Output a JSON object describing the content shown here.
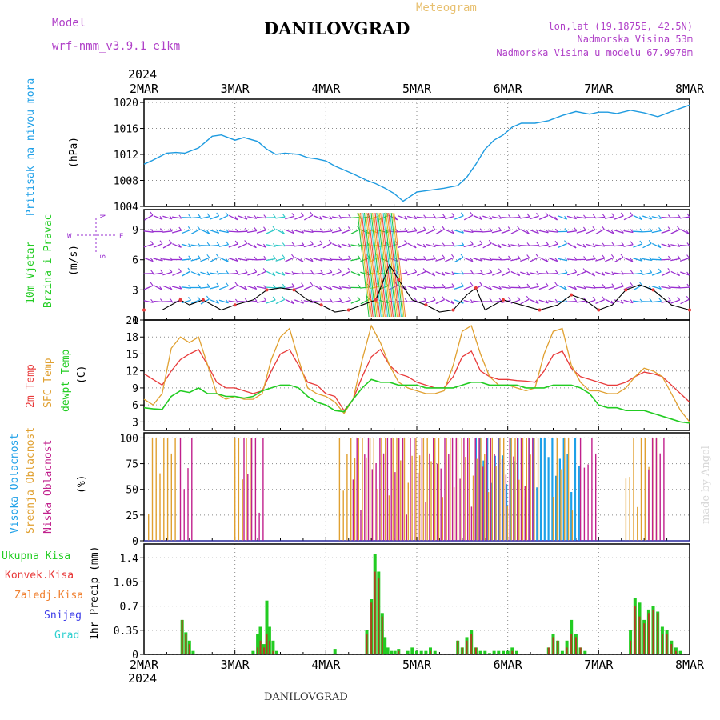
{
  "header": {
    "model_label": "Model",
    "model_name": "wrf-nmm_v3.9.1 e1km",
    "meteogram": "Meteogram",
    "station": "DANILOVGRAD",
    "lonlat": "lon,lat (19.1875E, 42.5N)",
    "elevation": "Nadmorska Visina 53m",
    "model_elevation": "Nadmorska Visina u modelu 67.9978m",
    "footer_station": "DANILOVGRAD",
    "watermark": "made by Angel"
  },
  "colors": {
    "pressure": "#1e9be0",
    "t2m": "#e83a3a",
    "sfc": "#e0a030",
    "dew": "#22cc22",
    "high_cloud": "#1ea0e8",
    "mid_cloud": "#e0a030",
    "low_cloud": "#c0208c",
    "total_precip": "#22cc22",
    "conv_precip": "#e83a3a",
    "frozen_precip": "#f08030",
    "snow": "#3a3ae8",
    "hail": "#30d0d0",
    "wind_label": "#22cc22",
    "wind_arrows": "#9a30d0",
    "axis_label": "#1ea0e8"
  },
  "time_axis": {
    "year": "2024",
    "ticks": [
      "2MAR",
      "3MAR",
      "4MAR",
      "5MAR",
      "6MAR",
      "7MAR",
      "8MAR"
    ]
  },
  "panels": {
    "pressure": {
      "label": "Pritisak na nivou mora",
      "unit": "(hPa)"
    },
    "wind": {
      "label1": "10m Vjetar",
      "label2": "Brzina i Pravac",
      "unit": "(m/s)",
      "compass_w": "W",
      "compass_e": "E",
      "compass_n": "N",
      "compass_s": "S"
    },
    "temp": {
      "label1": "2m Temp",
      "label2": "SFC Temp",
      "label3": "dewpt Temp",
      "unit": "(C)"
    },
    "cloud": {
      "label1": "Visoka Oblacnost",
      "label2": "Srednja Oblacnost",
      "label3": "Niska Oblacnost",
      "unit": "(%)"
    },
    "precip": {
      "labels": [
        "Ukupna Kisa",
        "Konvek.Kisa",
        "Zaledj.Kisa",
        "Snijeg",
        "Grad"
      ],
      "unit": "1hr Precip (mm)"
    }
  },
  "chart_data": [
    {
      "type": "line",
      "title": "Pritisak na nivou mora",
      "ylabel": "(hPa)",
      "ylim": [
        1004,
        1020.5
      ],
      "yticks": [
        1004,
        1008,
        1012,
        1016,
        1020
      ],
      "x_days": [
        0,
        0.08,
        0.15,
        0.25,
        0.35,
        0.45,
        0.6,
        0.75,
        0.85,
        1.0,
        1.1,
        1.25,
        1.35,
        1.45,
        1.55,
        1.7,
        1.8,
        1.9,
        2.0,
        2.1,
        2.3,
        2.45,
        2.55,
        2.65,
        2.75,
        2.85,
        3.0,
        3.15,
        3.3,
        3.45,
        3.55,
        3.65,
        3.75,
        3.85,
        3.95,
        4.05,
        4.15,
        4.3,
        4.45,
        4.6,
        4.75,
        4.9,
        5.0,
        5.1,
        5.2,
        5.35,
        5.5,
        5.65,
        5.8,
        6.0
      ],
      "series": [
        {
          "name": "",
          "values": [
            1010.5,
            1011,
            1011.5,
            1012.2,
            1012.3,
            1012.2,
            1013,
            1014.8,
            1015,
            1014.2,
            1014.6,
            1014,
            1012.8,
            1012,
            1012.2,
            1012,
            1011.5,
            1011.3,
            1011,
            1010.2,
            1009,
            1008,
            1007.5,
            1006.8,
            1006,
            1004.8,
            1006.2,
            1006.5,
            1006.8,
            1007.2,
            1008.5,
            1010.5,
            1012.8,
            1014.2,
            1015,
            1016.2,
            1016.8,
            1016.8,
            1017.2,
            1018,
            1018.6,
            1018.2,
            1018.5,
            1018.5,
            1018.3,
            1018.8,
            1018.4,
            1017.8,
            1018.6,
            1019.6
          ]
        }
      ]
    },
    {
      "type": "line",
      "title": "10m Vjetar",
      "ylabel": "(m/s)",
      "ylim": [
        0,
        11
      ],
      "yticks": [
        0,
        3,
        6,
        9
      ],
      "x_days": [
        0,
        0.2,
        0.4,
        0.5,
        0.65,
        0.85,
        1.0,
        1.2,
        1.35,
        1.5,
        1.65,
        1.8,
        1.95,
        2.1,
        2.25,
        2.4,
        2.55,
        2.7,
        2.8,
        2.95,
        3.1,
        3.25,
        3.4,
        3.55,
        3.65,
        3.75,
        3.95,
        4.15,
        4.35,
        4.55,
        4.7,
        4.85,
        5.0,
        5.15,
        5.3,
        5.45,
        5.6,
        5.8,
        6.0
      ],
      "series": [
        {
          "name": "",
          "values": [
            1.0,
            1.0,
            2.0,
            1.5,
            2.0,
            1.0,
            1.5,
            2.0,
            3.0,
            3.2,
            3.0,
            2.0,
            1.5,
            0.8,
            1.0,
            1.5,
            2.0,
            5.5,
            4.0,
            2.0,
            1.5,
            0.8,
            1.0,
            2.5,
            3.2,
            1.0,
            2.0,
            1.5,
            1.0,
            1.5,
            2.5,
            2.0,
            1.0,
            1.5,
            3.0,
            3.5,
            3.0,
            1.5,
            1.0
          ]
        }
      ]
    },
    {
      "type": "line",
      "title": "",
      "ylabel": "(C)",
      "ylim": [
        1.5,
        21
      ],
      "yticks": [
        3,
        6,
        9,
        12,
        15,
        18,
        21
      ],
      "x_days": [
        0,
        0.1,
        0.2,
        0.3,
        0.4,
        0.5,
        0.6,
        0.7,
        0.8,
        0.9,
        1.0,
        1.1,
        1.2,
        1.3,
        1.4,
        1.5,
        1.6,
        1.7,
        1.8,
        1.9,
        2.0,
        2.1,
        2.2,
        2.3,
        2.4,
        2.5,
        2.6,
        2.7,
        2.8,
        2.9,
        3.0,
        3.1,
        3.2,
        3.3,
        3.4,
        3.5,
        3.6,
        3.7,
        3.8,
        3.9,
        4.0,
        4.1,
        4.2,
        4.3,
        4.4,
        4.5,
        4.6,
        4.7,
        4.8,
        4.9,
        5.0,
        5.1,
        5.2,
        5.3,
        5.4,
        5.5,
        5.6,
        5.7,
        5.8,
        5.9,
        6.0
      ],
      "series": [
        {
          "name": "2m Temp",
          "values": [
            11.5,
            10.5,
            9.5,
            12,
            14,
            15,
            15.8,
            13,
            10,
            9,
            9,
            8.5,
            8,
            8.5,
            12,
            15,
            15.8,
            13,
            10,
            9.5,
            8,
            7.5,
            5,
            7,
            11,
            14.5,
            15.8,
            13,
            11.5,
            11,
            10,
            9.5,
            9,
            9,
            11,
            14.5,
            15.5,
            12,
            11,
            10.5,
            10.5,
            10.3,
            10.2,
            10,
            12,
            14.8,
            15.5,
            12.5,
            11,
            10.5,
            10,
            9.5,
            9.5,
            10,
            11,
            11.8,
            11.5,
            11,
            9.5,
            8,
            6.5
          ]
        },
        {
          "name": "SFC Temp",
          "values": [
            7,
            6,
            8,
            16,
            18,
            17,
            18,
            13,
            8,
            7,
            7.5,
            7,
            7,
            8,
            14,
            18,
            19.5,
            14,
            9,
            8,
            7.5,
            6.5,
            4.5,
            7,
            14,
            20,
            17,
            13,
            10,
            9,
            8.5,
            8,
            8,
            8.5,
            13,
            19,
            20,
            15,
            11,
            9.5,
            9.5,
            9,
            8.5,
            9,
            15,
            19,
            19.5,
            13,
            10,
            8.5,
            8.5,
            8,
            8,
            9,
            11,
            12.5,
            12,
            11,
            8,
            5,
            3
          ]
        },
        {
          "name": "dewpt Temp",
          "values": [
            5.5,
            5.3,
            5.2,
            7.5,
            8.5,
            8.2,
            9,
            8,
            8,
            7.5,
            7.5,
            7.2,
            7.5,
            8.5,
            9,
            9.5,
            9.5,
            9,
            7.5,
            6.5,
            6,
            5,
            4.8,
            7,
            9,
            10.5,
            10,
            10,
            9.5,
            9.5,
            9.5,
            9,
            9,
            9,
            9,
            9.5,
            10,
            10,
            9.5,
            9.5,
            9.5,
            9.5,
            9,
            9,
            9,
            9.5,
            9.5,
            9.5,
            9,
            8,
            6,
            5.5,
            5.5,
            5,
            5,
            5,
            4.5,
            4,
            3.5,
            3,
            2.8
          ]
        }
      ]
    },
    {
      "type": "bar",
      "title": "",
      "ylabel": "(%)",
      "ylim": [
        0,
        105
      ],
      "yticks": [
        0,
        25,
        50,
        75,
        100
      ],
      "series": [
        {
          "name": "Visoka Oblacnost",
          "ranges_days": [
            [
              3.65,
              4.8
            ]
          ],
          "value": 100
        },
        {
          "name": "Srednja Oblacnost",
          "ranges_days": [
            [
              0.05,
              0.35
            ],
            [
              1.0,
              1.2
            ],
            [
              2.15,
              4.35
            ],
            [
              4.5,
              4.75
            ],
            [
              5.3,
              5.65
            ]
          ],
          "value": 100
        },
        {
          "name": "Niska Oblacnost",
          "ranges_days": [
            [
              0.4,
              0.55
            ],
            [
              1.1,
              1.35
            ],
            [
              2.3,
              4.3
            ],
            [
              4.8,
              5.0
            ],
            [
              5.55,
              5.75
            ]
          ],
          "value": 100
        }
      ]
    },
    {
      "type": "bar",
      "title": "",
      "ylabel": "1hr Precip (mm)",
      "ylim": [
        0,
        1.6
      ],
      "yticks": [
        0,
        0.35,
        0.7,
        1.05,
        1.4
      ],
      "x_days": [
        0.42,
        0.46,
        0.5,
        0.54,
        1.2,
        1.25,
        1.28,
        1.32,
        1.35,
        1.38,
        1.42,
        1.46,
        2.1,
        2.45,
        2.5,
        2.54,
        2.58,
        2.62,
        2.65,
        2.68,
        2.72,
        2.76,
        2.8,
        2.9,
        2.95,
        3.0,
        3.05,
        3.1,
        3.15,
        3.2,
        3.45,
        3.5,
        3.55,
        3.6,
        3.65,
        3.7,
        3.75,
        3.8,
        3.85,
        3.9,
        3.95,
        4.0,
        4.05,
        4.1,
        4.45,
        4.5,
        4.55,
        4.6,
        4.65,
        4.7,
        4.75,
        4.8,
        4.85,
        5.35,
        5.4,
        5.45,
        5.5,
        5.55,
        5.6,
        5.65,
        5.7,
        5.75,
        5.8,
        5.85,
        5.9
      ],
      "series": [
        {
          "name": "Ukupna Kisa",
          "values": [
            0.5,
            0.32,
            0.2,
            0.05,
            0.05,
            0.3,
            0.4,
            0.15,
            0.78,
            0.4,
            0.2,
            0.05,
            0.08,
            0.35,
            0.8,
            1.45,
            1.2,
            0.6,
            0.25,
            0.1,
            0.05,
            0.05,
            0.08,
            0.05,
            0.1,
            0.05,
            0.05,
            0.05,
            0.1,
            0.05,
            0.2,
            0.1,
            0.25,
            0.35,
            0.1,
            0.05,
            0.05,
            0.02,
            0.05,
            0.05,
            0.05,
            0.05,
            0.1,
            0.05,
            0.1,
            0.3,
            0.2,
            0.05,
            0.2,
            0.5,
            0.3,
            0.1,
            0.05,
            0.35,
            0.82,
            0.75,
            0.5,
            0.65,
            0.7,
            0.62,
            0.4,
            0.35,
            0.2,
            0.1,
            0.05
          ]
        },
        {
          "name": "Konvek.Kisa",
          "values": [
            0.5,
            0.3,
            0.15,
            0.0,
            0.0,
            0.1,
            0.2,
            0.1,
            0.3,
            0.2,
            0.05,
            0.0,
            0.0,
            0.3,
            0.75,
            1.2,
            1.1,
            0.55,
            0.0,
            0.0,
            0.0,
            0.0,
            0.05,
            0.0,
            0.0,
            0.0,
            0.0,
            0.0,
            0.05,
            0.0,
            0.2,
            0.1,
            0.2,
            0.3,
            0.1,
            0.0,
            0.0,
            0.0,
            0.0,
            0.0,
            0.0,
            0.0,
            0.05,
            0.0,
            0.1,
            0.25,
            0.2,
            0.0,
            0.1,
            0.3,
            0.25,
            0.1,
            0.0,
            0.2,
            0.7,
            0.55,
            0.45,
            0.6,
            0.65,
            0.6,
            0.3,
            0.3,
            0.15,
            0.05,
            0.0
          ]
        }
      ]
    }
  ]
}
